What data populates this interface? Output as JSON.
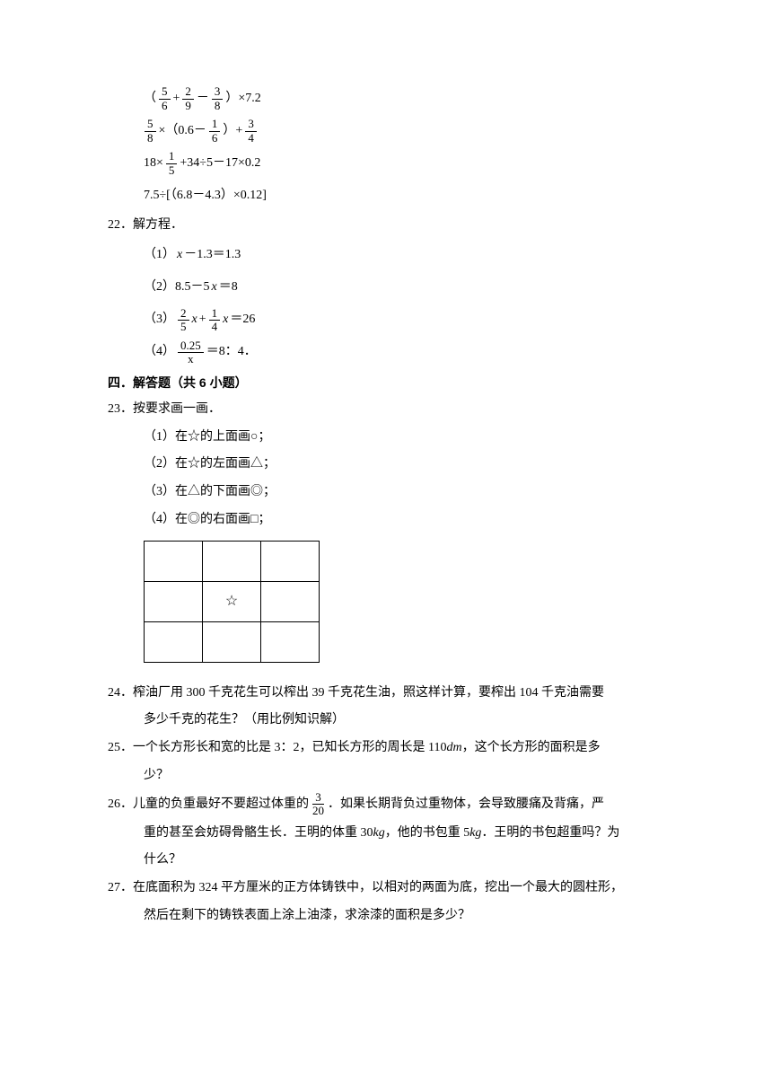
{
  "expressions": {
    "e1": {
      "pre": "（",
      "f1n": "5",
      "f1d": "6",
      "op1": "+",
      "f2n": "2",
      "f2d": "9",
      "op2": "－",
      "f3n": "3",
      "f3d": "8",
      "post": "）×7.2"
    },
    "e2": {
      "f1n": "5",
      "f1d": "8",
      "mid1": "×（0.6－",
      "f2n": "1",
      "f2d": "6",
      "mid2": "）+",
      "f3n": "3",
      "f3d": "4"
    },
    "e3": {
      "pre": "18×",
      "f1n": "1",
      "f1d": "5",
      "post": "+34÷5－17×0.2"
    },
    "e4": "7.5÷[（6.8－4.3）×0.12]"
  },
  "q22": {
    "num": "22．",
    "title": "解方程．",
    "p1_label": "（1）",
    "p1_body": "－1.3＝1.3",
    "p2_label": "（2）8.5－5",
    "p2_body": "＝8",
    "p3_label": "（3）",
    "p3_f1n": "2",
    "p3_f1d": "5",
    "p3_mid": "+",
    "p3_f2n": "1",
    "p3_f2d": "4",
    "p3_post": "＝26",
    "p4_label": "（4）",
    "p4_fn": "0.25",
    "p4_fd": "x",
    "p4_post": "＝8：4．"
  },
  "section4": "四．解答题（共 6 小题）",
  "q23": {
    "num": "23．",
    "title": "按要求画一画．",
    "p1": "（1）在☆的上面画○；",
    "p2": "（2）在☆的左面画△；",
    "p3": "（3）在△的下面画◎；",
    "p4": "（4）在◎的右面画□；",
    "star": "☆"
  },
  "q24": {
    "num": "24．",
    "line1": "榨油厂用 300 千克花生可以榨出 39 千克花生油，照这样计算，要榨出 104 千克油需要",
    "line2": "多少千克的花生？（用比例知识解）"
  },
  "q25": {
    "num": "25．",
    "line1": "一个长方形长和宽的比是 3：2，已知长方形的周长是 110",
    "unit": "dm",
    "line1b": "，这个长方形的面积是多",
    "line2": "少？"
  },
  "q26": {
    "num": "26．",
    "pre": "儿童的负重最好不要超过体重的",
    "fn": "3",
    "fd": "20",
    "post": "．如果长期背负过重物体，会导致腰痛及背痛，严",
    "line2a": "重的甚至会妨碍骨骼生长．王明的体重 30",
    "kg": "kg",
    "line2b": "，他的书包重 5",
    "line2c": "．王明的书包超重吗？为",
    "line3": "什么？"
  },
  "q27": {
    "num": "27．",
    "line1": "在底面积为 324 平方厘米的正方体铸铁中，以相对的两面为底，挖出一个最大的圆柱形，",
    "line2": "然后在剩下的铸铁表面上涂上油漆，求涂漆的面积是多少？"
  }
}
